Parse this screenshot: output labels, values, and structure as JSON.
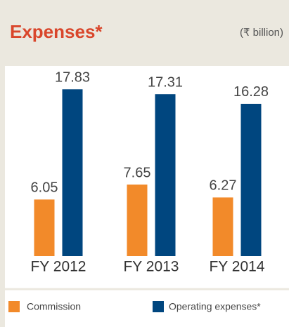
{
  "chart_data": {
    "type": "bar",
    "title": "Expenses*",
    "subtitle": "(₹ billion)",
    "categories": [
      "FY 2012",
      "FY 2013",
      "FY 2014"
    ],
    "series": [
      {
        "name": "Commission",
        "color": "#f28a2a",
        "values": [
          6.05,
          7.65,
          6.27
        ]
      },
      {
        "name": "Operating expenses*",
        "color": "#00467f",
        "values": [
          17.83,
          17.31,
          16.28
        ]
      }
    ],
    "ylim": [
      0,
      18
    ]
  }
}
